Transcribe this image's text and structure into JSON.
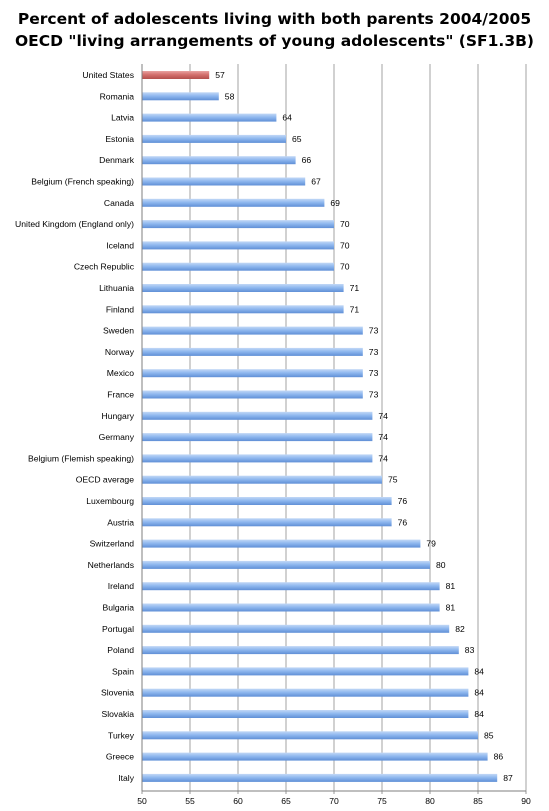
{
  "chart_data": {
    "type": "bar",
    "orientation": "horizontal",
    "title": "Percent of adolescents living with both parents 2004/2005",
    "subtitle": "OECD \"living arrangements of young adolescents\" (SF1.3B)",
    "xlabel": "",
    "ylabel": "",
    "xlim": [
      50,
      90
    ],
    "x_ticks": [
      50,
      55,
      60,
      65,
      70,
      75,
      80,
      85,
      90
    ],
    "grid": "vertical",
    "legend": "none",
    "categories": [
      "United States",
      "Romania",
      "Latvia",
      "Estonia",
      "Denmark",
      "Belgium (French speaking)",
      "Canada",
      "United Kingdom (England only)",
      "Iceland",
      "Czech Republic",
      "Lithuania",
      "Finland",
      "Sweden",
      "Norway",
      "Mexico",
      "France",
      "Hungary",
      "Germany",
      "Belgium (Flemish speaking)",
      "OECD average",
      "Luxembourg",
      "Austria",
      "Switzerland",
      "Netherlands",
      "Ireland",
      "Bulgaria",
      "Portugal",
      "Poland",
      "Spain",
      "Slovenia",
      "Slovakia",
      "Turkey",
      "Greece",
      "Italy"
    ],
    "values": [
      57,
      58,
      64,
      65,
      66,
      67,
      69,
      70,
      70,
      70,
      71,
      71,
      73,
      73,
      73,
      73,
      74,
      74,
      74,
      75,
      76,
      76,
      79,
      80,
      81,
      81,
      82,
      83,
      84,
      84,
      84,
      85,
      86,
      87
    ],
    "highlight": "United States",
    "colors": {
      "bar_top": "#c2d8f6",
      "bar_mid": "#8fb8ef",
      "bar_bottom": "#5f8fd6",
      "highlight_top": "#e9a3a1",
      "highlight_mid": "#d4716e",
      "highlight_bottom": "#b34f4c",
      "grid": "#8c8c8c",
      "axis": "#7f7f7f"
    }
  }
}
